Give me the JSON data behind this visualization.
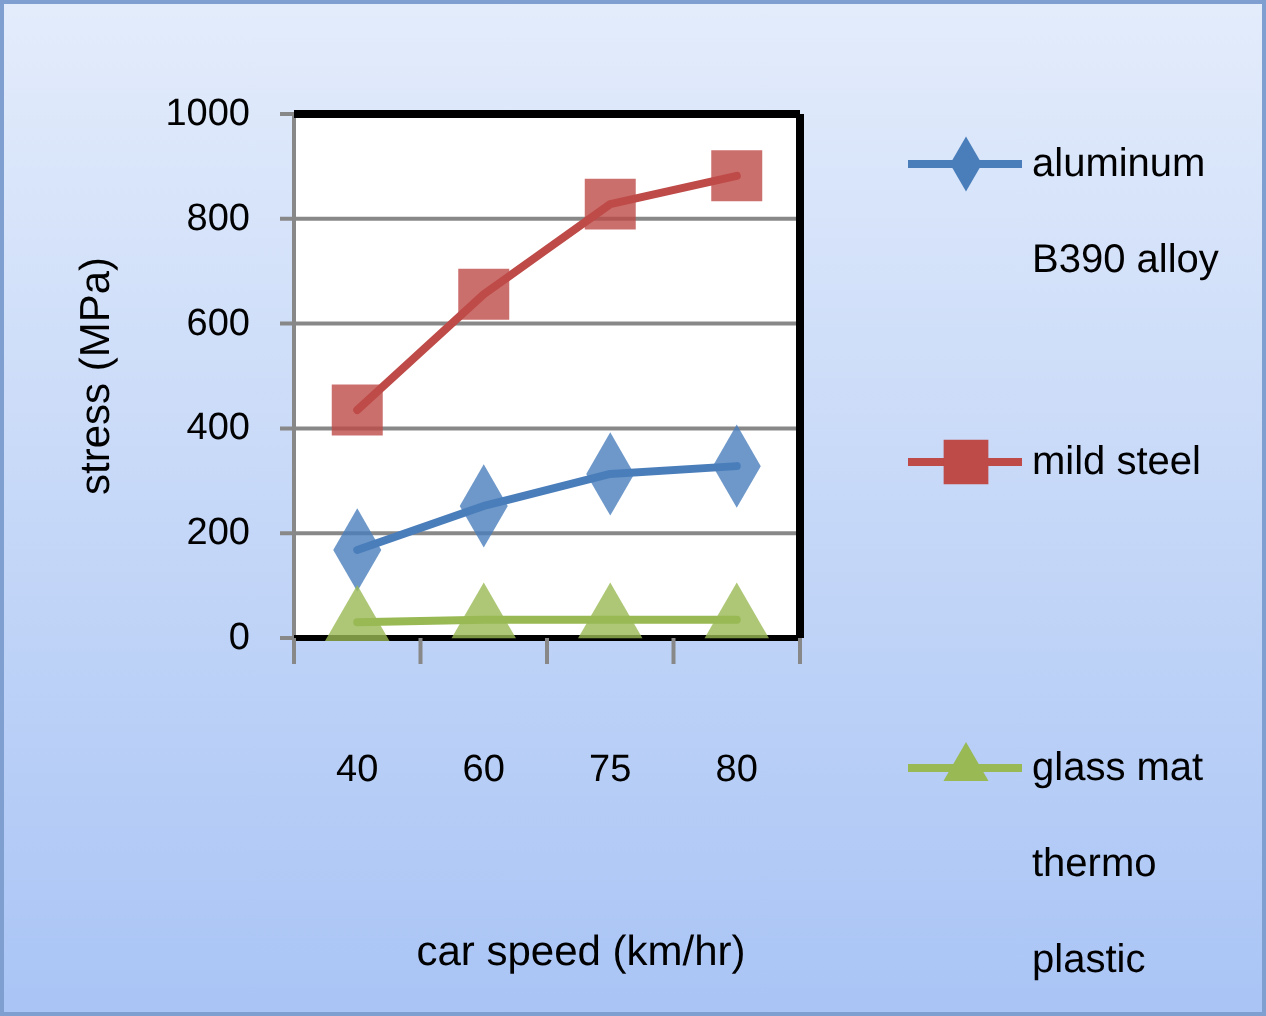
{
  "chart_data": {
    "type": "line",
    "xlabel": "car speed (km/hr)",
    "ylabel": "stress (MPa)",
    "categories": [
      "40",
      "60",
      "75",
      "80"
    ],
    "series": [
      {
        "name": "aluminum B390 alloy",
        "color": "#4a7ebb",
        "marker": "diamond",
        "values": [
          168,
          252,
          313,
          328
        ]
      },
      {
        "name": "mild steel",
        "color": "#be4b48",
        "marker": "square",
        "values": [
          435,
          656,
          828,
          882
        ]
      },
      {
        "name": "glass mat thermo plastic",
        "color": "#98b954",
        "marker": "triangle",
        "values": [
          30,
          35,
          35,
          35
        ]
      }
    ],
    "ylim": [
      0,
      1000
    ],
    "yticks": [
      0,
      200,
      400,
      600,
      800,
      1000
    ],
    "grid": "y",
    "legend": "right",
    "line_style": "solid"
  }
}
